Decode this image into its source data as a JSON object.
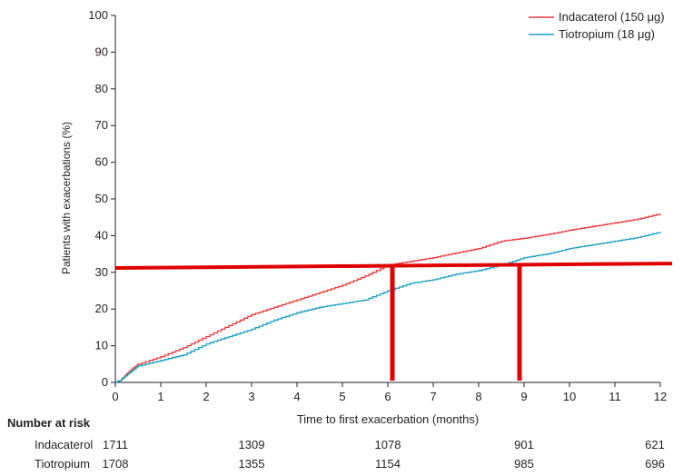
{
  "chart_data": {
    "type": "line",
    "title": "",
    "xlabel": "Time to first exacerbation (months)",
    "ylabel": "Patients with exacerbations (%)",
    "xlim": [
      0,
      12
    ],
    "ylim": [
      0,
      100
    ],
    "x_ticks": [
      "0",
      "1",
      "2",
      "3",
      "4",
      "5",
      "6",
      "7",
      "8",
      "9",
      "10",
      "11",
      "12"
    ],
    "y_ticks": [
      "0",
      "10",
      "20",
      "30",
      "40",
      "50",
      "60",
      "70",
      "80",
      "90",
      "100"
    ],
    "grid": false,
    "legend_position": "top-right",
    "series": [
      {
        "name": "Indacaterol (150 μg)",
        "color": "#e8383d",
        "x": [
          0,
          0.1,
          0.3,
          0.5,
          1,
          1.5,
          2,
          2.5,
          3,
          3.5,
          4,
          4.5,
          5,
          5.5,
          6,
          6.5,
          7,
          7.5,
          8,
          8.5,
          9,
          9.5,
          10,
          10.5,
          11,
          11.5,
          12
        ],
        "y": [
          0,
          0.5,
          3,
          5,
          7,
          9.5,
          12.5,
          15.5,
          18.5,
          20.5,
          22.5,
          24.5,
          26.5,
          29,
          32,
          33,
          34,
          35.3,
          36.5,
          38.5,
          39.3,
          40.3,
          41.5,
          42.5,
          43.5,
          44.5,
          46
        ]
      },
      {
        "name": "Tiotropium (18 μg)",
        "color": "#1a9fbf",
        "x": [
          0,
          0.1,
          0.3,
          0.5,
          1,
          1.5,
          2,
          2.5,
          3,
          3.5,
          4,
          4.5,
          5,
          5.5,
          6,
          6.5,
          7,
          7.5,
          8,
          8.5,
          9,
          9.5,
          10,
          10.5,
          11,
          11.5,
          12
        ],
        "y": [
          0,
          0.5,
          2.5,
          4.5,
          6,
          7.5,
          10.5,
          12.5,
          14.5,
          17,
          19,
          20.5,
          21.5,
          22.5,
          25,
          27,
          28,
          29.5,
          30.5,
          32,
          34,
          35,
          36.5,
          37.5,
          38.5,
          39.5,
          41
        ]
      }
    ],
    "annotations": {
      "color": "#e00000",
      "horizontal_line_y": [
        31.2,
        32.4
      ],
      "vertical_lines_x": [
        6.1,
        8.9
      ],
      "vertical_lines_top_y": 32
    }
  },
  "risk_table": {
    "title": "Number at risk",
    "rows": [
      {
        "label": "Indacaterol",
        "values": [
          "1711",
          "1309",
          "1078",
          "901",
          "621"
        ]
      },
      {
        "label": "Tiotropium",
        "values": [
          "1708",
          "1355",
          "1154",
          "985",
          "696"
        ]
      }
    ]
  }
}
